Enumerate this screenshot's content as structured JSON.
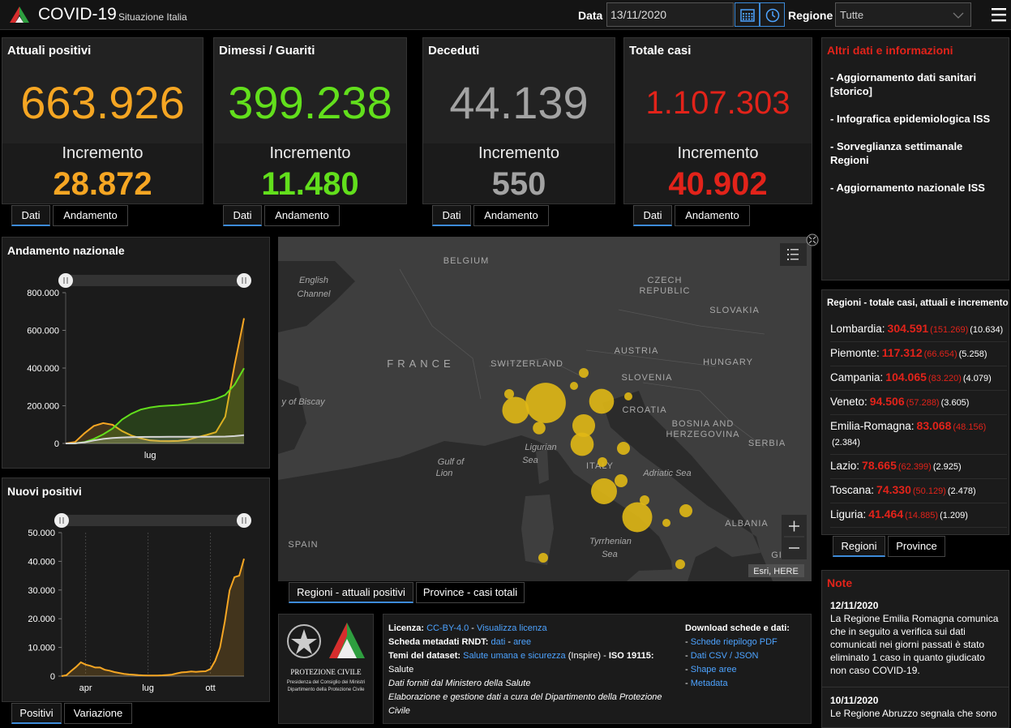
{
  "header": {
    "title": "COVID-19",
    "subtitle": "Situazione Italia",
    "date_label": "Data",
    "date": "13/11/2020",
    "region_label": "Regione",
    "region": "Tutte"
  },
  "cards": [
    {
      "title": "Attuali positivi",
      "value": "663.926",
      "increment_label": "Incremento",
      "increment": "28.872",
      "color": "#f6a623",
      "tabs": [
        "Dati",
        "Andamento"
      ]
    },
    {
      "title": "Dimessi / Guariti",
      "value": "399.238",
      "increment_label": "Incremento",
      "increment": "11.480",
      "color": "#62df1c",
      "tabs": [
        "Dati",
        "Andamento"
      ]
    },
    {
      "title": "Deceduti",
      "value": "44.139",
      "increment_label": "Incremento",
      "increment": "550",
      "color": "#a3a3a3",
      "tabs": [
        "Dati",
        "Andamento"
      ]
    },
    {
      "title": "Totale casi",
      "value": "1.107.303",
      "increment_label": "Incremento",
      "increment": "40.902",
      "color": "#e2231a",
      "tabs": [
        "Dati",
        "Andamento"
      ]
    }
  ],
  "info": {
    "title": "Altri dati e informazioni",
    "links": [
      "- Aggiornamento dati sanitari [storico]",
      "- Infografica epidemiologica ISS",
      "- Sorveglianza settimanale Regioni",
      "- Aggiornamento nazionale ISS"
    ]
  },
  "regions": {
    "title": "Regioni - totale casi, attuali e incremento",
    "rows": [
      {
        "name": "Lombardia:",
        "total": "304.591",
        "current": "(151.269)",
        "increment": "(10.634)"
      },
      {
        "name": "Piemonte:",
        "total": "117.312",
        "current": "(66.654)",
        "increment": "(5.258)"
      },
      {
        "name": "Campania:",
        "total": "104.065",
        "current": "(83.220)",
        "increment": "(4.079)"
      },
      {
        "name": "Veneto:",
        "total": "94.506",
        "current": "(57.288)",
        "increment": "(3.605)"
      },
      {
        "name": "Emilia-Romagna:",
        "total": "83.068",
        "current": "(48.156)",
        "increment": "(2.384)"
      },
      {
        "name": "Lazio:",
        "total": "78.665",
        "current": "(62.399)",
        "increment": "(2.925)"
      },
      {
        "name": "Toscana:",
        "total": "74.330",
        "current": "(50.129)",
        "increment": "(2.478)"
      },
      {
        "name": "Liguria:",
        "total": "41.464",
        "current": "(14.885)",
        "increment": "(1.209)"
      }
    ],
    "tabs": [
      "Regioni",
      "Province"
    ]
  },
  "notes": {
    "title": "Note",
    "items": [
      {
        "date": "12/11/2020",
        "text": "La Regione Emilia Romagna comunica che in seguito a verifica sui dati comunicati nei giorni passati è stato eliminato 1 caso in quanto giudicato non caso COVID-19."
      },
      {
        "date": "10/11/2020",
        "text": "Le Regione Abruzzo segnala che sono"
      }
    ]
  },
  "charts": [
    {
      "type": "line",
      "title": "Andamento nazionale",
      "categories": [
        null,
        null,
        null,
        null,
        null,
        null,
        null,
        null,
        null,
        "lug",
        null,
        null,
        null,
        null,
        null,
        null,
        null,
        null,
        null,
        null
      ],
      "series": [
        {
          "color": "#f6a623",
          "values": [
            200,
            7900,
            54000,
            93000,
            108000,
            99000,
            66000,
            42000,
            27000,
            16000,
            13000,
            12500,
            13500,
            19000,
            33000,
            45000,
            60000,
            142000,
            418000,
            663926
          ]
        },
        {
          "color": "#62df1c",
          "values": [
            0,
            600,
            7400,
            24000,
            48000,
            79000,
            127000,
            158000,
            180000,
            191000,
            198000,
            201000,
            204000,
            209000,
            214000,
            224000,
            236000,
            257000,
            312000,
            399238
          ]
        },
        {
          "color": "#d6d6d6",
          "values": [
            0,
            500,
            6000,
            16000,
            24000,
            29000,
            32000,
            33500,
            34400,
            34800,
            35000,
            35100,
            35200,
            35400,
            35500,
            35700,
            36000,
            36600,
            39000,
            44139
          ]
        }
      ],
      "ylim": [
        0,
        800000
      ],
      "yticks": [
        0,
        {
          "value": 200000,
          "label": "200.000"
        },
        {
          "value": 400000,
          "label": "400.000"
        },
        {
          "value": 600000,
          "label": "600.000"
        },
        {
          "value": 800000,
          "label": "800.000"
        }
      ],
      "vgrid": false
    },
    {
      "type": "line",
      "title": "Nuovi positivi",
      "categories": [
        null,
        null,
        null,
        null,
        null,
        "apr",
        null,
        null,
        null,
        null,
        null,
        null,
        null,
        null,
        null,
        null,
        null,
        null,
        "lug",
        null,
        null,
        null,
        null,
        null,
        null,
        null,
        null,
        null,
        null,
        null,
        null,
        "ott",
        null,
        null,
        null,
        null,
        null,
        null,
        null
      ],
      "series": [
        {
          "color": "#f6a623",
          "values": [
            0,
            300,
            1800,
            3200,
            4800,
            4000,
            3600,
            3000,
            3000,
            2200,
            1900,
            1400,
            1100,
            800,
            600,
            500,
            330,
            260,
            190,
            200,
            230,
            280,
            400,
            550,
            950,
            1300,
            1400,
            1600,
            1500,
            1600,
            1700,
            2500,
            5400,
            10000,
            19000,
            29900,
            34500,
            35000,
            40902
          ]
        }
      ],
      "ylim": [
        0,
        50000
      ],
      "yticks": [
        0,
        {
          "value": 10000,
          "label": "10.000"
        },
        {
          "value": 20000,
          "label": "20.000"
        },
        {
          "value": 30000,
          "label": "30.000"
        },
        {
          "value": 40000,
          "label": "40.000"
        },
        {
          "value": 50000,
          "label": "50.000"
        }
      ],
      "vgrid": true,
      "tabs": [
        "Positivi",
        "Variazione"
      ]
    }
  ],
  "map": {
    "labels": [
      "BELGIUM",
      "English",
      "Channel",
      "CZECH",
      "REPUBLIC",
      "SLOVAKIA",
      "FRANCE",
      "AUSTRIA",
      "HUNGARY",
      "SWITZERLAND",
      "SLOVENIA",
      "CROATIA",
      "y of Biscay",
      "BOSNIA AND",
      "HERZEGOVINA",
      "SERBIA",
      "Ligurian",
      "Sea",
      "Gulf of",
      "Lion",
      "ITALY",
      "Adriatic Sea",
      "SPAIN",
      "Tyrrhenian",
      "Sea",
      "ALBANIA",
      "GI"
    ],
    "attribution": "Esri, HERE",
    "tabs": [
      "Regioni - attuali positivi",
      "Province - casi totali"
    ]
  },
  "footer": {
    "logo": {
      "name": "PROTEZIONE CIVILE",
      "line1": "Presidenza del Consiglio dei Ministri",
      "line2": "Dipartimento della Protezione Civile"
    },
    "lines": [
      [
        {
          "text": "Licenza: ",
          "style": "bold"
        },
        {
          "text": "CC-BY-4.0",
          "style": "link"
        },
        {
          "text": " - ",
          "style": "plain"
        },
        {
          "text": "Visualizza licenza",
          "style": "link"
        }
      ],
      [
        {
          "text": "Scheda metadati RNDT: ",
          "style": "bold"
        },
        {
          "text": "dati",
          "style": "link"
        },
        {
          "text": " - ",
          "style": "plain"
        },
        {
          "text": "aree",
          "style": "link"
        }
      ],
      [
        {
          "text": "Temi del dataset: ",
          "style": "bold"
        },
        {
          "text": "Salute umana e sicurezza",
          "style": "link"
        },
        {
          "text": " (Inspire) - ",
          "style": "plain"
        },
        {
          "text": "ISO 19115:",
          "style": "bold"
        }
      ],
      [
        {
          "text": "Salute",
          "style": "plain"
        }
      ],
      [
        {
          "text": "Dati forniti dal Ministero della Salute",
          "style": "italic"
        }
      ],
      [
        {
          "text": "Elaborazione e gestione dati a cura del Dipartimento della Protezione Civile",
          "style": "italic"
        }
      ]
    ],
    "download": {
      "title": "Download schede e dati:",
      "items": [
        [
          {
            "text": "- ",
            "style": "plain"
          },
          {
            "text": "Schede riepilogo PDF",
            "style": "link"
          }
        ],
        [
          {
            "text": "- ",
            "style": "plain"
          },
          {
            "text": "Dati CSV / JSON",
            "style": "link"
          }
        ],
        [
          {
            "text": "- ",
            "style": "plain"
          },
          {
            "text": "Shape aree",
            "style": "link"
          }
        ],
        [
          {
            "text": "- ",
            "style": "plain"
          },
          {
            "text": "Metadata",
            "style": "link"
          }
        ]
      ]
    }
  }
}
